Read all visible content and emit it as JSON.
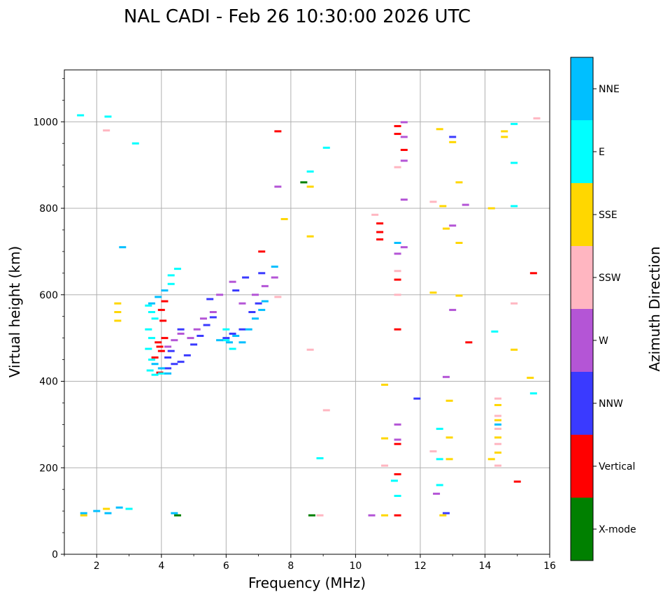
{
  "chart_data": {
    "type": "scatter",
    "title": "NAL CADI - Feb 26 10:30:00 2026 UTC",
    "xlabel": "Frequency (MHz)",
    "ylabel": "Virtual height (km)",
    "xlim": [
      1,
      16
    ],
    "ylim": [
      0,
      1120
    ],
    "xticks": [
      2,
      4,
      6,
      8,
      10,
      12,
      14,
      16
    ],
    "xtick_labels": [
      "2",
      "4",
      "6",
      "8",
      "10",
      "12",
      "14",
      "16"
    ],
    "yticks": [
      0,
      200,
      400,
      600,
      800,
      1000
    ],
    "ytick_labels": [
      "0",
      "200",
      "400",
      "600",
      "800",
      "1000"
    ],
    "grid": true,
    "colorbar": {
      "label": "Azimuth Direction",
      "categories": [
        "X-mode",
        "Vertical",
        "NNW",
        "W",
        "SSW",
        "SSE",
        "E",
        "NNE"
      ],
      "colors": [
        "#008000",
        "#ff0000",
        "#3a3aff",
        "#b455d6",
        "#ffb6c1",
        "#ffd700",
        "#00ffff",
        "#00bfff"
      ]
    },
    "series": [
      {
        "name": "X-mode",
        "points": [
          [
            8.4,
            860
          ],
          [
            8.65,
            90
          ],
          [
            4.5,
            90
          ]
        ]
      },
      {
        "name": "Vertical",
        "points": [
          [
            3.95,
            420
          ],
          [
            3.8,
            455
          ],
          [
            4.0,
            470
          ],
          [
            3.9,
            490
          ],
          [
            4.05,
            540
          ],
          [
            4.0,
            565
          ],
          [
            4.1,
            585
          ],
          [
            3.95,
            480
          ],
          [
            4.1,
            500
          ],
          [
            7.6,
            978
          ],
          [
            7.1,
            700
          ],
          [
            10.75,
            765
          ],
          [
            10.75,
            745
          ],
          [
            10.75,
            728
          ],
          [
            11.3,
            990
          ],
          [
            11.3,
            972
          ],
          [
            11.5,
            935
          ],
          [
            11.3,
            635
          ],
          [
            11.3,
            520
          ],
          [
            11.3,
            255
          ],
          [
            11.3,
            185
          ],
          [
            11.3,
            90
          ],
          [
            13.5,
            490
          ],
          [
            15.5,
            650
          ],
          [
            15.0,
            168
          ]
        ]
      },
      {
        "name": "NNW",
        "points": [
          [
            4.2,
            430
          ],
          [
            4.4,
            440
          ],
          [
            4.6,
            445
          ],
          [
            4.8,
            460
          ],
          [
            5.0,
            485
          ],
          [
            5.2,
            505
          ],
          [
            5.4,
            530
          ],
          [
            5.6,
            548
          ],
          [
            6.0,
            500
          ],
          [
            6.2,
            510
          ],
          [
            6.5,
            520
          ],
          [
            6.8,
            560
          ],
          [
            7.0,
            580
          ],
          [
            6.3,
            610
          ],
          [
            6.6,
            640
          ],
          [
            4.6,
            520
          ],
          [
            4.3,
            470
          ],
          [
            11.9,
            360
          ],
          [
            13.0,
            965
          ],
          [
            12.8,
            95
          ],
          [
            7.1,
            650
          ],
          [
            5.5,
            590
          ],
          [
            4.2,
            455
          ]
        ]
      },
      {
        "name": "W",
        "points": [
          [
            4.6,
            510
          ],
          [
            4.9,
            500
          ],
          [
            5.1,
            520
          ],
          [
            5.3,
            545
          ],
          [
            5.6,
            560
          ],
          [
            5.8,
            600
          ],
          [
            6.2,
            630
          ],
          [
            6.5,
            580
          ],
          [
            6.9,
            600
          ],
          [
            7.2,
            620
          ],
          [
            7.5,
            640
          ],
          [
            4.4,
            495
          ],
          [
            4.2,
            480
          ],
          [
            11.5,
            910
          ],
          [
            11.5,
            965
          ],
          [
            11.3,
            695
          ],
          [
            11.5,
            710
          ],
          [
            11.5,
            820
          ],
          [
            11.3,
            300
          ],
          [
            11.3,
            265
          ],
          [
            12.5,
            140
          ],
          [
            12.8,
            410
          ],
          [
            13.0,
            565
          ],
          [
            13.0,
            760
          ],
          [
            13.4,
            808
          ],
          [
            10.5,
            90
          ],
          [
            11.5,
            999
          ],
          [
            7.6,
            850
          ]
        ]
      },
      {
        "name": "SSW",
        "points": [
          [
            11.3,
            895
          ],
          [
            10.6,
            785
          ],
          [
            11.3,
            655
          ],
          [
            11.3,
            600
          ],
          [
            12.4,
            815
          ],
          [
            12.4,
            238
          ],
          [
            14.4,
            360
          ],
          [
            14.4,
            320
          ],
          [
            14.4,
            290
          ],
          [
            14.4,
            255
          ],
          [
            14.4,
            205
          ],
          [
            14.9,
            580
          ],
          [
            15.6,
            1008
          ],
          [
            10.9,
            205
          ],
          [
            8.9,
            90
          ],
          [
            8.6,
            473
          ],
          [
            9.1,
            333
          ],
          [
            7.6,
            595
          ],
          [
            2.3,
            980
          ]
        ]
      },
      {
        "name": "SSE",
        "points": [
          [
            2.65,
            580
          ],
          [
            2.65,
            560
          ],
          [
            2.65,
            540
          ],
          [
            2.3,
            105
          ],
          [
            3.0,
            105
          ],
          [
            1.6,
            90
          ],
          [
            7.8,
            775
          ],
          [
            8.6,
            735
          ],
          [
            8.6,
            850
          ],
          [
            12.6,
            983
          ],
          [
            12.7,
            805
          ],
          [
            12.8,
            753
          ],
          [
            13.0,
            953
          ],
          [
            13.2,
            860
          ],
          [
            13.2,
            720
          ],
          [
            13.2,
            598
          ],
          [
            12.4,
            605
          ],
          [
            12.9,
            355
          ],
          [
            12.9,
            270
          ],
          [
            12.9,
            220
          ],
          [
            14.2,
            800
          ],
          [
            14.6,
            978
          ],
          [
            14.6,
            965
          ],
          [
            14.4,
            345
          ],
          [
            14.4,
            310
          ],
          [
            14.4,
            270
          ],
          [
            14.4,
            235
          ],
          [
            14.2,
            220
          ],
          [
            15.4,
            408
          ],
          [
            14.9,
            473
          ],
          [
            10.9,
            392
          ],
          [
            10.9,
            268
          ],
          [
            10.9,
            90
          ],
          [
            12.7,
            90
          ]
        ]
      },
      {
        "name": "E",
        "points": [
          [
            3.6,
            575
          ],
          [
            3.7,
            560
          ],
          [
            3.8,
            545
          ],
          [
            3.6,
            520
          ],
          [
            3.7,
            500
          ],
          [
            3.6,
            475
          ],
          [
            3.7,
            450
          ],
          [
            3.65,
            425
          ],
          [
            3.8,
            415
          ],
          [
            4.0,
            418
          ],
          [
            4.3,
            625
          ],
          [
            4.3,
            645
          ],
          [
            4.5,
            660
          ],
          [
            6.0,
            520
          ],
          [
            6.0,
            495
          ],
          [
            6.2,
            475
          ],
          [
            3.0,
            105
          ],
          [
            1.5,
            1015
          ],
          [
            2.35,
            1012
          ],
          [
            3.2,
            950
          ],
          [
            9.1,
            940
          ],
          [
            8.6,
            885
          ],
          [
            8.9,
            222
          ],
          [
            12.6,
            290
          ],
          [
            12.6,
            220
          ],
          [
            12.6,
            160
          ],
          [
            14.3,
            515
          ],
          [
            14.9,
            995
          ],
          [
            14.9,
            905
          ],
          [
            14.9,
            805
          ],
          [
            15.5,
            372
          ],
          [
            11.2,
            170
          ],
          [
            11.3,
            135
          ]
        ]
      },
      {
        "name": "NNE",
        "points": [
          [
            3.7,
            580
          ],
          [
            3.9,
            595
          ],
          [
            4.1,
            610
          ],
          [
            3.8,
            440
          ],
          [
            4.0,
            430
          ],
          [
            4.2,
            418
          ],
          [
            5.8,
            495
          ],
          [
            6.1,
            490
          ],
          [
            6.3,
            505
          ],
          [
            6.5,
            490
          ],
          [
            6.7,
            520
          ],
          [
            6.9,
            545
          ],
          [
            7.1,
            565
          ],
          [
            7.2,
            585
          ],
          [
            7.5,
            665
          ],
          [
            2.8,
            710
          ],
          [
            1.6,
            95
          ],
          [
            2.0,
            100
          ],
          [
            2.35,
            95
          ],
          [
            2.7,
            108
          ],
          [
            14.4,
            300
          ],
          [
            11.3,
            720
          ],
          [
            4.4,
            95
          ]
        ]
      }
    ]
  }
}
